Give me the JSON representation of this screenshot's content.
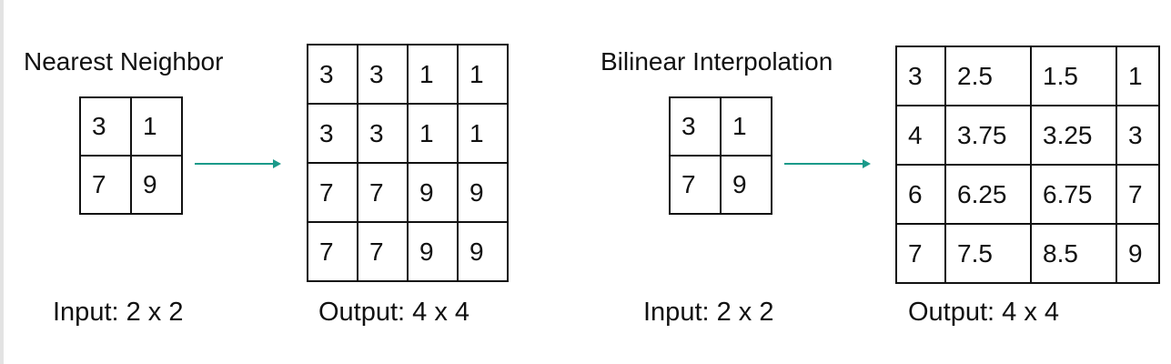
{
  "nearest": {
    "title": "Nearest Neighbor",
    "input_caption": "Input: 2 x 2",
    "output_caption": "Output: 4 x 4",
    "input": [
      [
        "3",
        "1"
      ],
      [
        "7",
        "9"
      ]
    ],
    "output": [
      [
        "3",
        "3",
        "1",
        "1"
      ],
      [
        "3",
        "3",
        "1",
        "1"
      ],
      [
        "7",
        "7",
        "9",
        "9"
      ],
      [
        "7",
        "7",
        "9",
        "9"
      ]
    ]
  },
  "bilinear": {
    "title": "Bilinear Interpolation",
    "input_caption": "Input: 2 x 2",
    "output_caption": "Output: 4 x 4",
    "input": [
      [
        "3",
        "1"
      ],
      [
        "7",
        "9"
      ]
    ],
    "output": [
      [
        "3",
        "2.5",
        "1.5",
        "1"
      ],
      [
        "4",
        "3.75",
        "3.25",
        "3"
      ],
      [
        "6",
        "6.25",
        "6.75",
        "7"
      ],
      [
        "7",
        "7.5",
        "8.5",
        "9"
      ]
    ]
  },
  "colors": {
    "arrow": "#1a9a8a",
    "grid_line": "#111111"
  }
}
